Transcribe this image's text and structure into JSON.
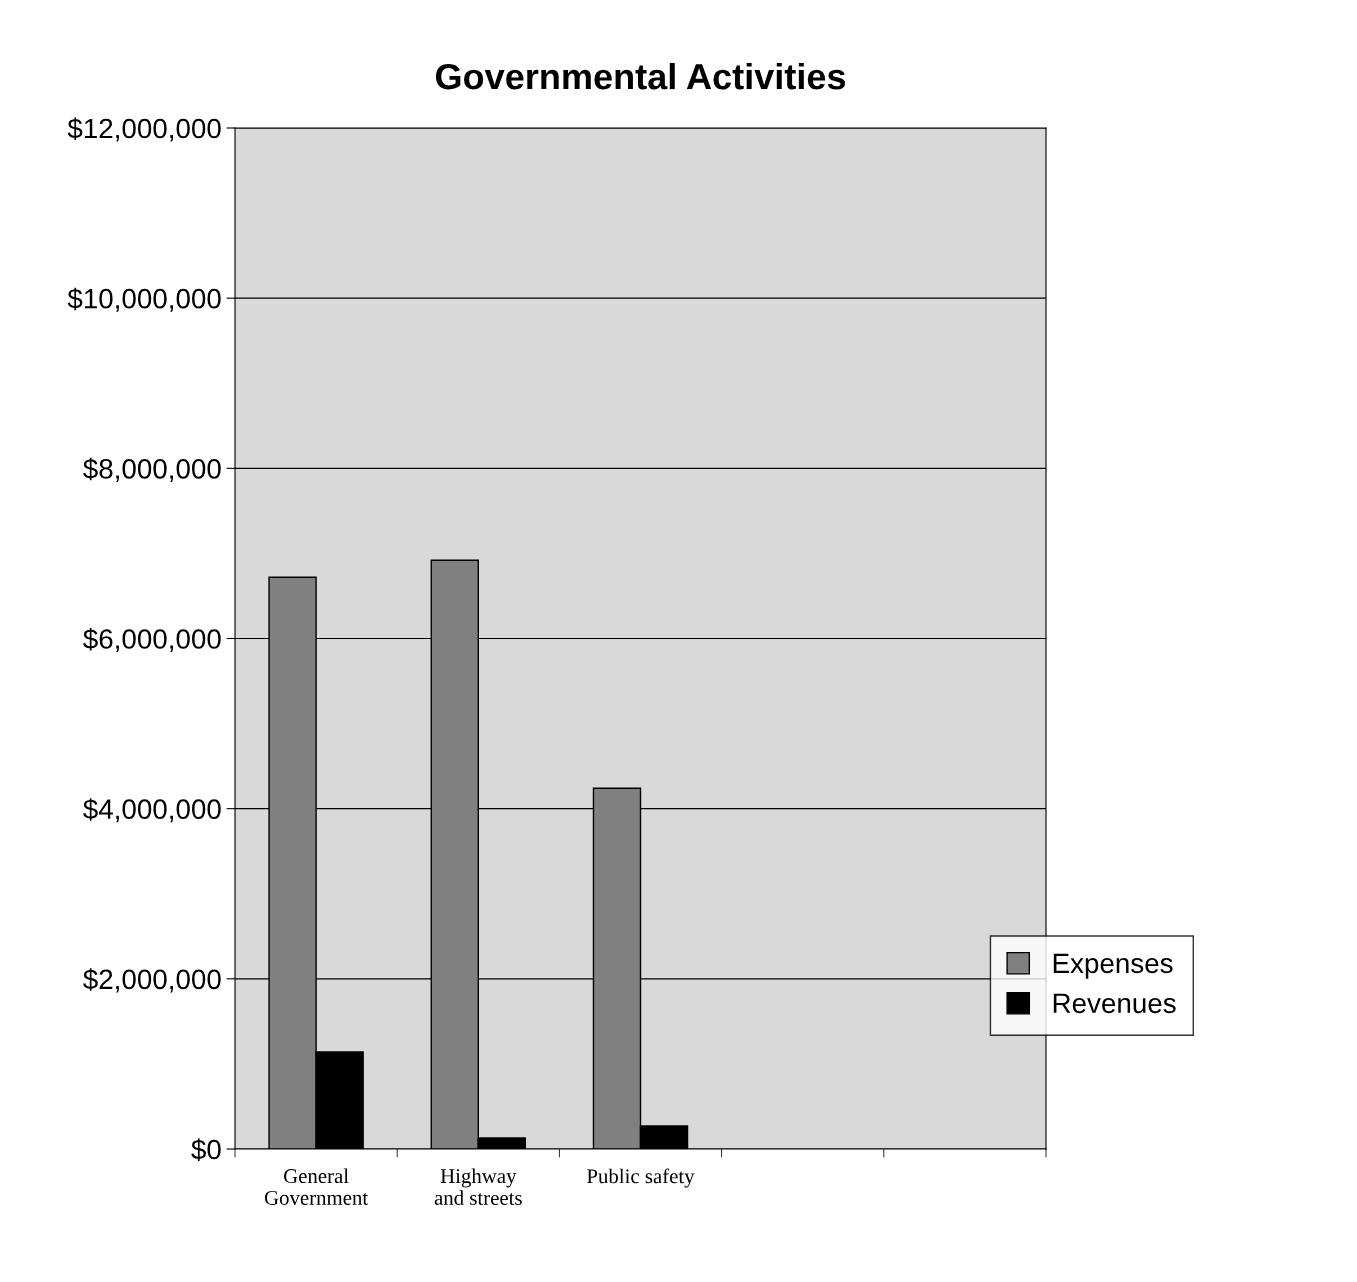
{
  "chart_data": {
    "type": "bar",
    "title": "Governmental Activities",
    "categories": [
      "General Government",
      "Highway and streets",
      "Public safety",
      null,
      null
    ],
    "series": [
      {
        "name": "Expenses",
        "color": "#808080",
        "values": [
          6720000,
          6920000,
          4240000,
          null,
          null
        ]
      },
      {
        "name": "Revenues",
        "color": "#000000",
        "values": [
          1140000,
          130000,
          270000,
          null,
          null
        ]
      }
    ],
    "ylim": [
      0,
      12000000
    ],
    "yticks": [
      {
        "value": 0,
        "label": "$0"
      },
      {
        "value": 2000000,
        "label": "$2,000,000"
      },
      {
        "value": 4000000,
        "label": "$4,000,000"
      },
      {
        "value": 6000000,
        "label": "$6,000,000"
      },
      {
        "value": 8000000,
        "label": "$8,000,000"
      },
      {
        "value": 10000000,
        "label": "$10,000,000"
      },
      {
        "value": 12000000,
        "label": "$12,000,000"
      }
    ],
    "grid": "y",
    "legend": "right"
  }
}
